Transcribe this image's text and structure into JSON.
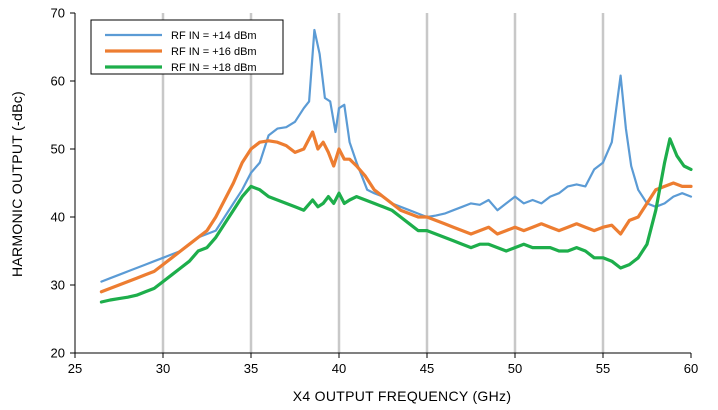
{
  "chart_data": {
    "type": "line",
    "xlabel": "X4 OUTPUT FREQUENCY (GHz)",
    "ylabel": "HARMONIC OUTPUT  (-dBc)",
    "xlim": [
      25,
      60
    ],
    "ylim": [
      20,
      70
    ],
    "xticks": [
      25,
      30,
      35,
      40,
      45,
      50,
      55,
      60
    ],
    "yticks": [
      20,
      30,
      40,
      50,
      60,
      70
    ],
    "grid": "vertical",
    "legend_position": "top-left",
    "series": [
      {
        "name": "RF IN = +14 dBm",
        "color": "#5B9BD5",
        "x": [
          26.5,
          27,
          27.5,
          28,
          28.5,
          29,
          29.5,
          30,
          30.5,
          31,
          31.5,
          32,
          32.5,
          33,
          33.5,
          34,
          34.5,
          35,
          35.5,
          36,
          36.5,
          37,
          37.5,
          38,
          38.3,
          38.6,
          38.9,
          39.2,
          39.5,
          39.8,
          40,
          40.3,
          40.6,
          41,
          41.3,
          41.6,
          42,
          42.5,
          43,
          43.5,
          44,
          44.5,
          45,
          45.5,
          46,
          46.5,
          47,
          47.5,
          48,
          48.5,
          49,
          49.5,
          50,
          50.5,
          51,
          51.5,
          52,
          52.5,
          53,
          53.5,
          54,
          54.5,
          55,
          55.5,
          56,
          56.3,
          56.6,
          57,
          57.5,
          58,
          58.5,
          59,
          59.5,
          60
        ],
        "y": [
          30.5,
          31,
          31.5,
          32,
          32.5,
          33,
          33.5,
          34,
          34.5,
          35,
          36,
          37,
          37.5,
          38,
          40,
          42,
          44,
          46.5,
          48,
          52,
          53,
          53.2,
          54,
          56,
          57,
          67.5,
          64,
          57.5,
          57,
          52.5,
          56,
          56.5,
          51,
          48,
          46,
          44,
          43.5,
          43,
          42,
          41.5,
          41,
          40.5,
          40,
          40.2,
          40.5,
          41,
          41.5,
          42,
          41.8,
          42.5,
          41,
          42,
          43,
          42,
          42.5,
          42,
          43,
          43.5,
          44.5,
          44.8,
          44.5,
          47,
          48,
          51,
          60.8,
          53,
          47.5,
          44,
          42,
          41.5,
          42,
          43,
          43.5,
          43
        ]
      },
      {
        "name": "RF IN = +16 dBm",
        "color": "#ED7D31",
        "x": [
          26.5,
          27,
          27.5,
          28,
          28.5,
          29,
          29.5,
          30,
          30.5,
          31,
          31.5,
          32,
          32.5,
          33,
          33.5,
          34,
          34.5,
          35,
          35.5,
          36,
          36.5,
          37,
          37.5,
          38,
          38.5,
          38.8,
          39.1,
          39.4,
          39.7,
          40,
          40.3,
          40.6,
          41,
          41.5,
          42,
          42.5,
          43,
          43.5,
          44,
          44.5,
          45,
          45.5,
          46,
          46.5,
          47,
          47.5,
          48,
          48.5,
          49,
          49.5,
          50,
          50.5,
          51,
          51.5,
          52,
          52.5,
          53,
          53.5,
          54,
          54.5,
          55,
          55.5,
          56,
          56.5,
          57,
          57.5,
          58,
          58.5,
          59,
          59.5,
          60
        ],
        "y": [
          29,
          29.5,
          30,
          30.5,
          31,
          31.5,
          32,
          33,
          34,
          35,
          36,
          37,
          38,
          40,
          42.5,
          45,
          48,
          50,
          51,
          51.2,
          51,
          50.5,
          49.5,
          50,
          52.5,
          50,
          51,
          49.5,
          47.5,
          50,
          48.5,
          48.5,
          47.5,
          46,
          44,
          43,
          42,
          41,
          40.5,
          40,
          40,
          39.5,
          39,
          38.5,
          38,
          37.5,
          38,
          38.5,
          37.5,
          38,
          38.5,
          38,
          38.5,
          39,
          38.5,
          38,
          38.5,
          39,
          38.5,
          38,
          38.5,
          38.8,
          37.5,
          39.5,
          40,
          42,
          44,
          44.5,
          45,
          44.5,
          44.5
        ]
      },
      {
        "name": "RF IN = +18 dBm",
        "color": "#1DAE4B",
        "x": [
          26.5,
          27,
          27.5,
          28,
          28.5,
          29,
          29.5,
          30,
          30.5,
          31,
          31.5,
          32,
          32.5,
          33,
          33.5,
          34,
          34.5,
          35,
          35.5,
          36,
          36.5,
          37,
          37.5,
          38,
          38.5,
          38.8,
          39.1,
          39.4,
          39.7,
          40,
          40.3,
          40.6,
          41,
          41.5,
          42,
          42.5,
          43,
          43.5,
          44,
          44.5,
          45,
          45.5,
          46,
          46.5,
          47,
          47.5,
          48,
          48.5,
          49,
          49.5,
          50,
          50.5,
          51,
          51.5,
          52,
          52.5,
          53,
          53.5,
          54,
          54.5,
          55,
          55.5,
          56,
          56.5,
          57,
          57.5,
          58,
          58.5,
          58.8,
          59.2,
          59.6,
          60
        ],
        "y": [
          27.5,
          27.8,
          28,
          28.2,
          28.5,
          29,
          29.5,
          30.5,
          31.5,
          32.5,
          33.5,
          35,
          35.5,
          37,
          39,
          41,
          43,
          44.5,
          44,
          43,
          42.5,
          42,
          41.5,
          41,
          42.5,
          41.5,
          42,
          43,
          42,
          43.5,
          42,
          42.5,
          43,
          42.5,
          42,
          41.5,
          41,
          40,
          39,
          38,
          38,
          37.5,
          37,
          36.5,
          36,
          35.5,
          36,
          36,
          35.5,
          35,
          35.5,
          36,
          35.5,
          35.5,
          35.5,
          35,
          35,
          35.5,
          35,
          34,
          34,
          33.5,
          32.5,
          33,
          34,
          36,
          41,
          48,
          51.5,
          49,
          47.5,
          47
        ]
      }
    ]
  }
}
